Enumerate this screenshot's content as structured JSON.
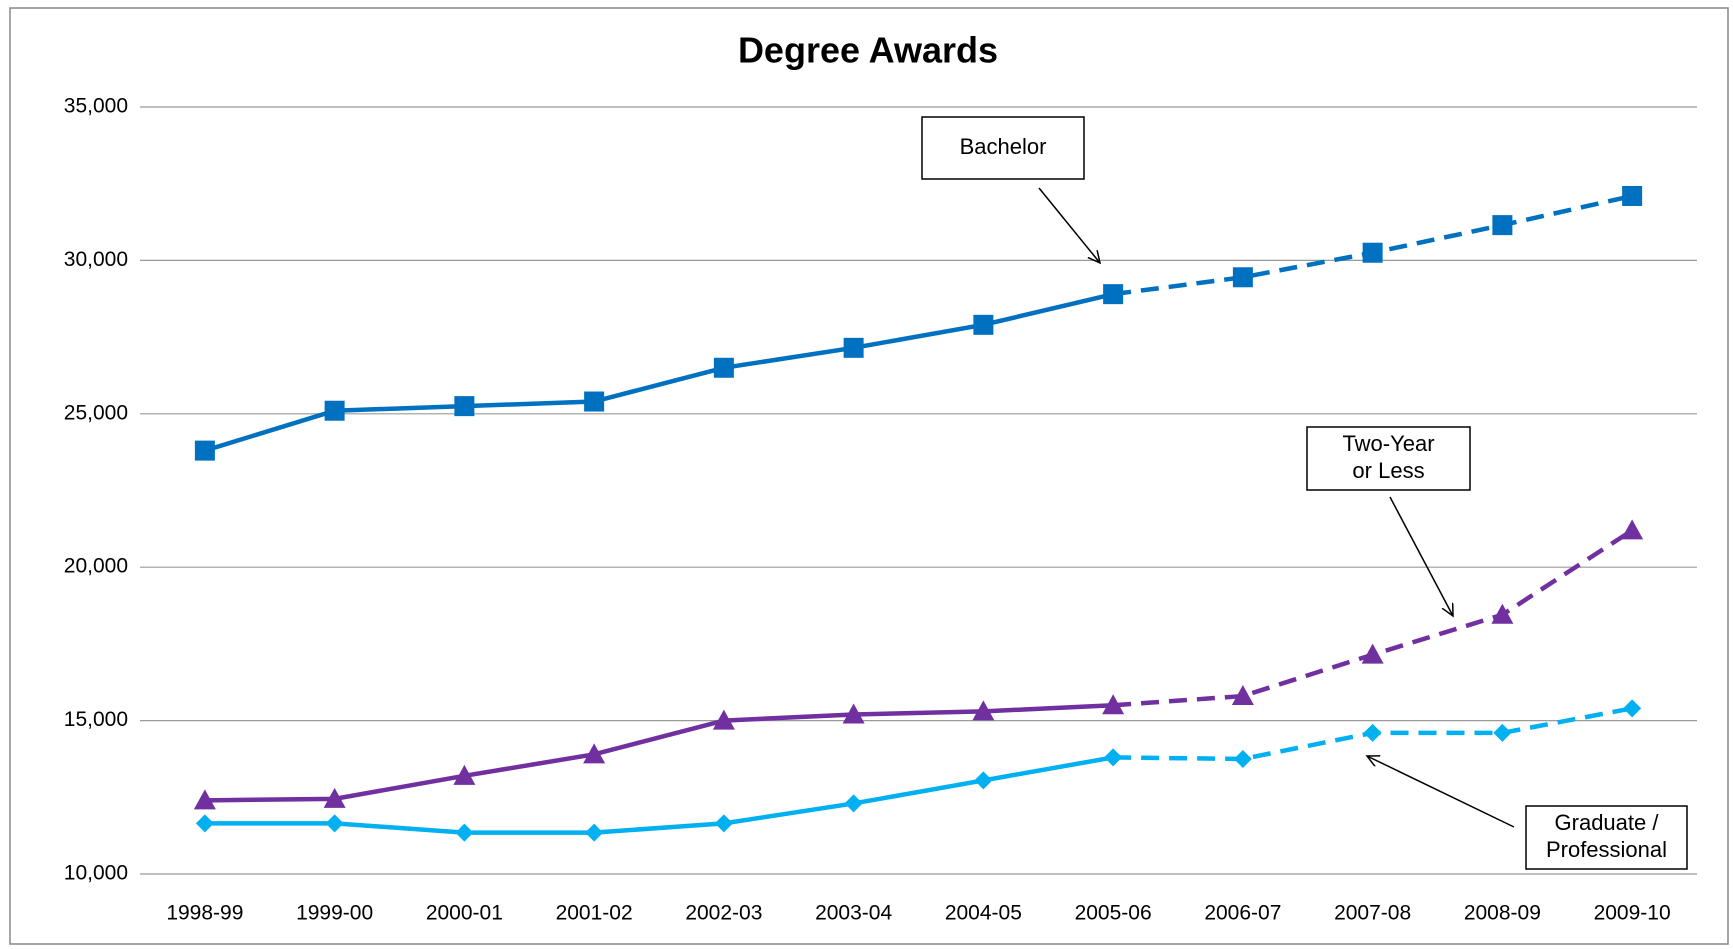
{
  "chart_data": {
    "type": "line",
    "title": "Degree Awards",
    "categories": [
      "1998-99",
      "1999-00",
      "2000-01",
      "2001-02",
      "2002-03",
      "2003-04",
      "2004-05",
      "2005-06",
      "2006-07",
      "2007-08",
      "2008-09",
      "2009-10"
    ],
    "series": [
      {
        "name": "Bachelor",
        "color": "#0070c0",
        "marker": "square",
        "values": [
          23800,
          25100,
          25250,
          25400,
          26500,
          27150,
          27900,
          28900,
          29450,
          30250,
          31150,
          32100
        ]
      },
      {
        "name": "Two-Year or Less",
        "color": "#7030a0",
        "marker": "triangle",
        "values": [
          12400,
          12450,
          13200,
          13900,
          15000,
          15200,
          15300,
          15500,
          15800,
          17150,
          18450,
          21200
        ]
      },
      {
        "name": "Graduate / Professional",
        "color": "#00b0f0",
        "marker": "diamond",
        "values": [
          11650,
          11650,
          11350,
          11350,
          11650,
          12300,
          13050,
          13800,
          13750,
          14600,
          14600,
          15400
        ]
      }
    ],
    "projection_start": "2005-06",
    "annotations": [
      {
        "lines": [
          "Bachelor"
        ]
      },
      {
        "lines": [
          "Two-Year",
          "or Less"
        ]
      },
      {
        "lines": [
          "Graduate /",
          "Professional"
        ]
      }
    ],
    "ylim": [
      10000,
      35000
    ],
    "yticks": [
      {
        "value": 10000,
        "label": "10,000"
      },
      {
        "value": 15000,
        "label": "15,000"
      },
      {
        "value": 20000,
        "label": "20,000"
      },
      {
        "value": 25000,
        "label": "25,000"
      },
      {
        "value": 30000,
        "label": "30,000"
      },
      {
        "value": 35000,
        "label": "35,000"
      }
    ],
    "grid": true
  }
}
